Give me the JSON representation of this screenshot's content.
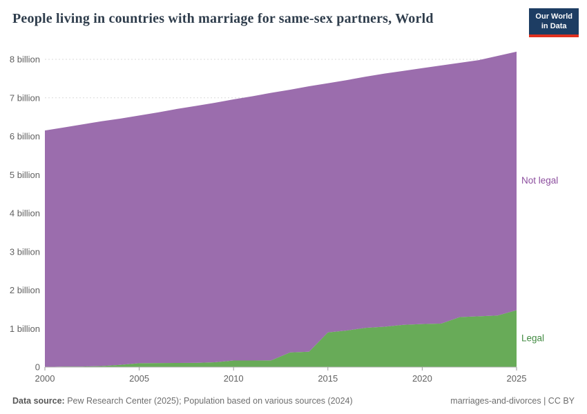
{
  "header": {
    "title": "People living in countries with marriage for same-sex partners, World",
    "logo": {
      "line1": "Our World",
      "line2": "in Data",
      "bg": "#1d3d63",
      "accent": "#e0311f"
    }
  },
  "footer": {
    "datasource_label": "Data source:",
    "datasource_text": " Pew Research Center (2025); Population based on various sources (2024)",
    "slug": "marriages-and-divorces",
    "separator": " | ",
    "license": "CC BY"
  },
  "chart_data": {
    "type": "area",
    "stacked": true,
    "title": "People living in countries with marriage for same-sex partners, World",
    "x": [
      2000,
      2001,
      2002,
      2003,
      2004,
      2005,
      2006,
      2007,
      2008,
      2009,
      2010,
      2011,
      2012,
      2013,
      2014,
      2015,
      2016,
      2017,
      2018,
      2019,
      2020,
      2021,
      2022,
      2023,
      2024,
      2025
    ],
    "series": [
      {
        "name": "Legal",
        "color": "#68ab58",
        "label_color": "#418a41",
        "values": [
          0.002,
          0.016,
          0.016,
          0.027,
          0.06,
          0.1,
          0.105,
          0.107,
          0.11,
          0.125,
          0.17,
          0.17,
          0.175,
          0.38,
          0.4,
          0.9,
          0.95,
          1.02,
          1.05,
          1.1,
          1.12,
          1.13,
          1.3,
          1.32,
          1.34,
          1.48
        ]
      },
      {
        "name": "Not legal",
        "color": "#9b6dad",
        "label_color": "#8c4e9e",
        "values": [
          6.148,
          6.214,
          6.294,
          6.363,
          6.4,
          6.44,
          6.515,
          6.603,
          6.68,
          6.745,
          6.79,
          6.87,
          6.955,
          6.83,
          6.9,
          6.48,
          6.51,
          6.53,
          6.58,
          6.6,
          6.65,
          6.71,
          6.61,
          6.66,
          6.75,
          6.72
        ]
      }
    ],
    "totals_hint": [
      6.15,
      6.23,
      6.31,
      6.39,
      6.46,
      6.54,
      6.62,
      6.71,
      6.79,
      6.87,
      6.96,
      7.04,
      7.13,
      7.21,
      7.3,
      7.38,
      7.46,
      7.55,
      7.63,
      7.7,
      7.77,
      7.84,
      7.91,
      7.98,
      8.09,
      8.2
    ],
    "xticks": [
      2000,
      2005,
      2010,
      2015,
      2020,
      2025
    ],
    "yticks": [
      0,
      1,
      2,
      3,
      4,
      5,
      6,
      7,
      8
    ],
    "ytick_suffix": " billion",
    "ytick_zero_label": "0",
    "ylim": [
      0,
      8
    ],
    "grid": "dashed-horizontal",
    "legend": "inline-right",
    "axis_text_color": "#616161",
    "grid_color": "#d9d9d9",
    "axis_line_color": "#b0b0b0"
  }
}
